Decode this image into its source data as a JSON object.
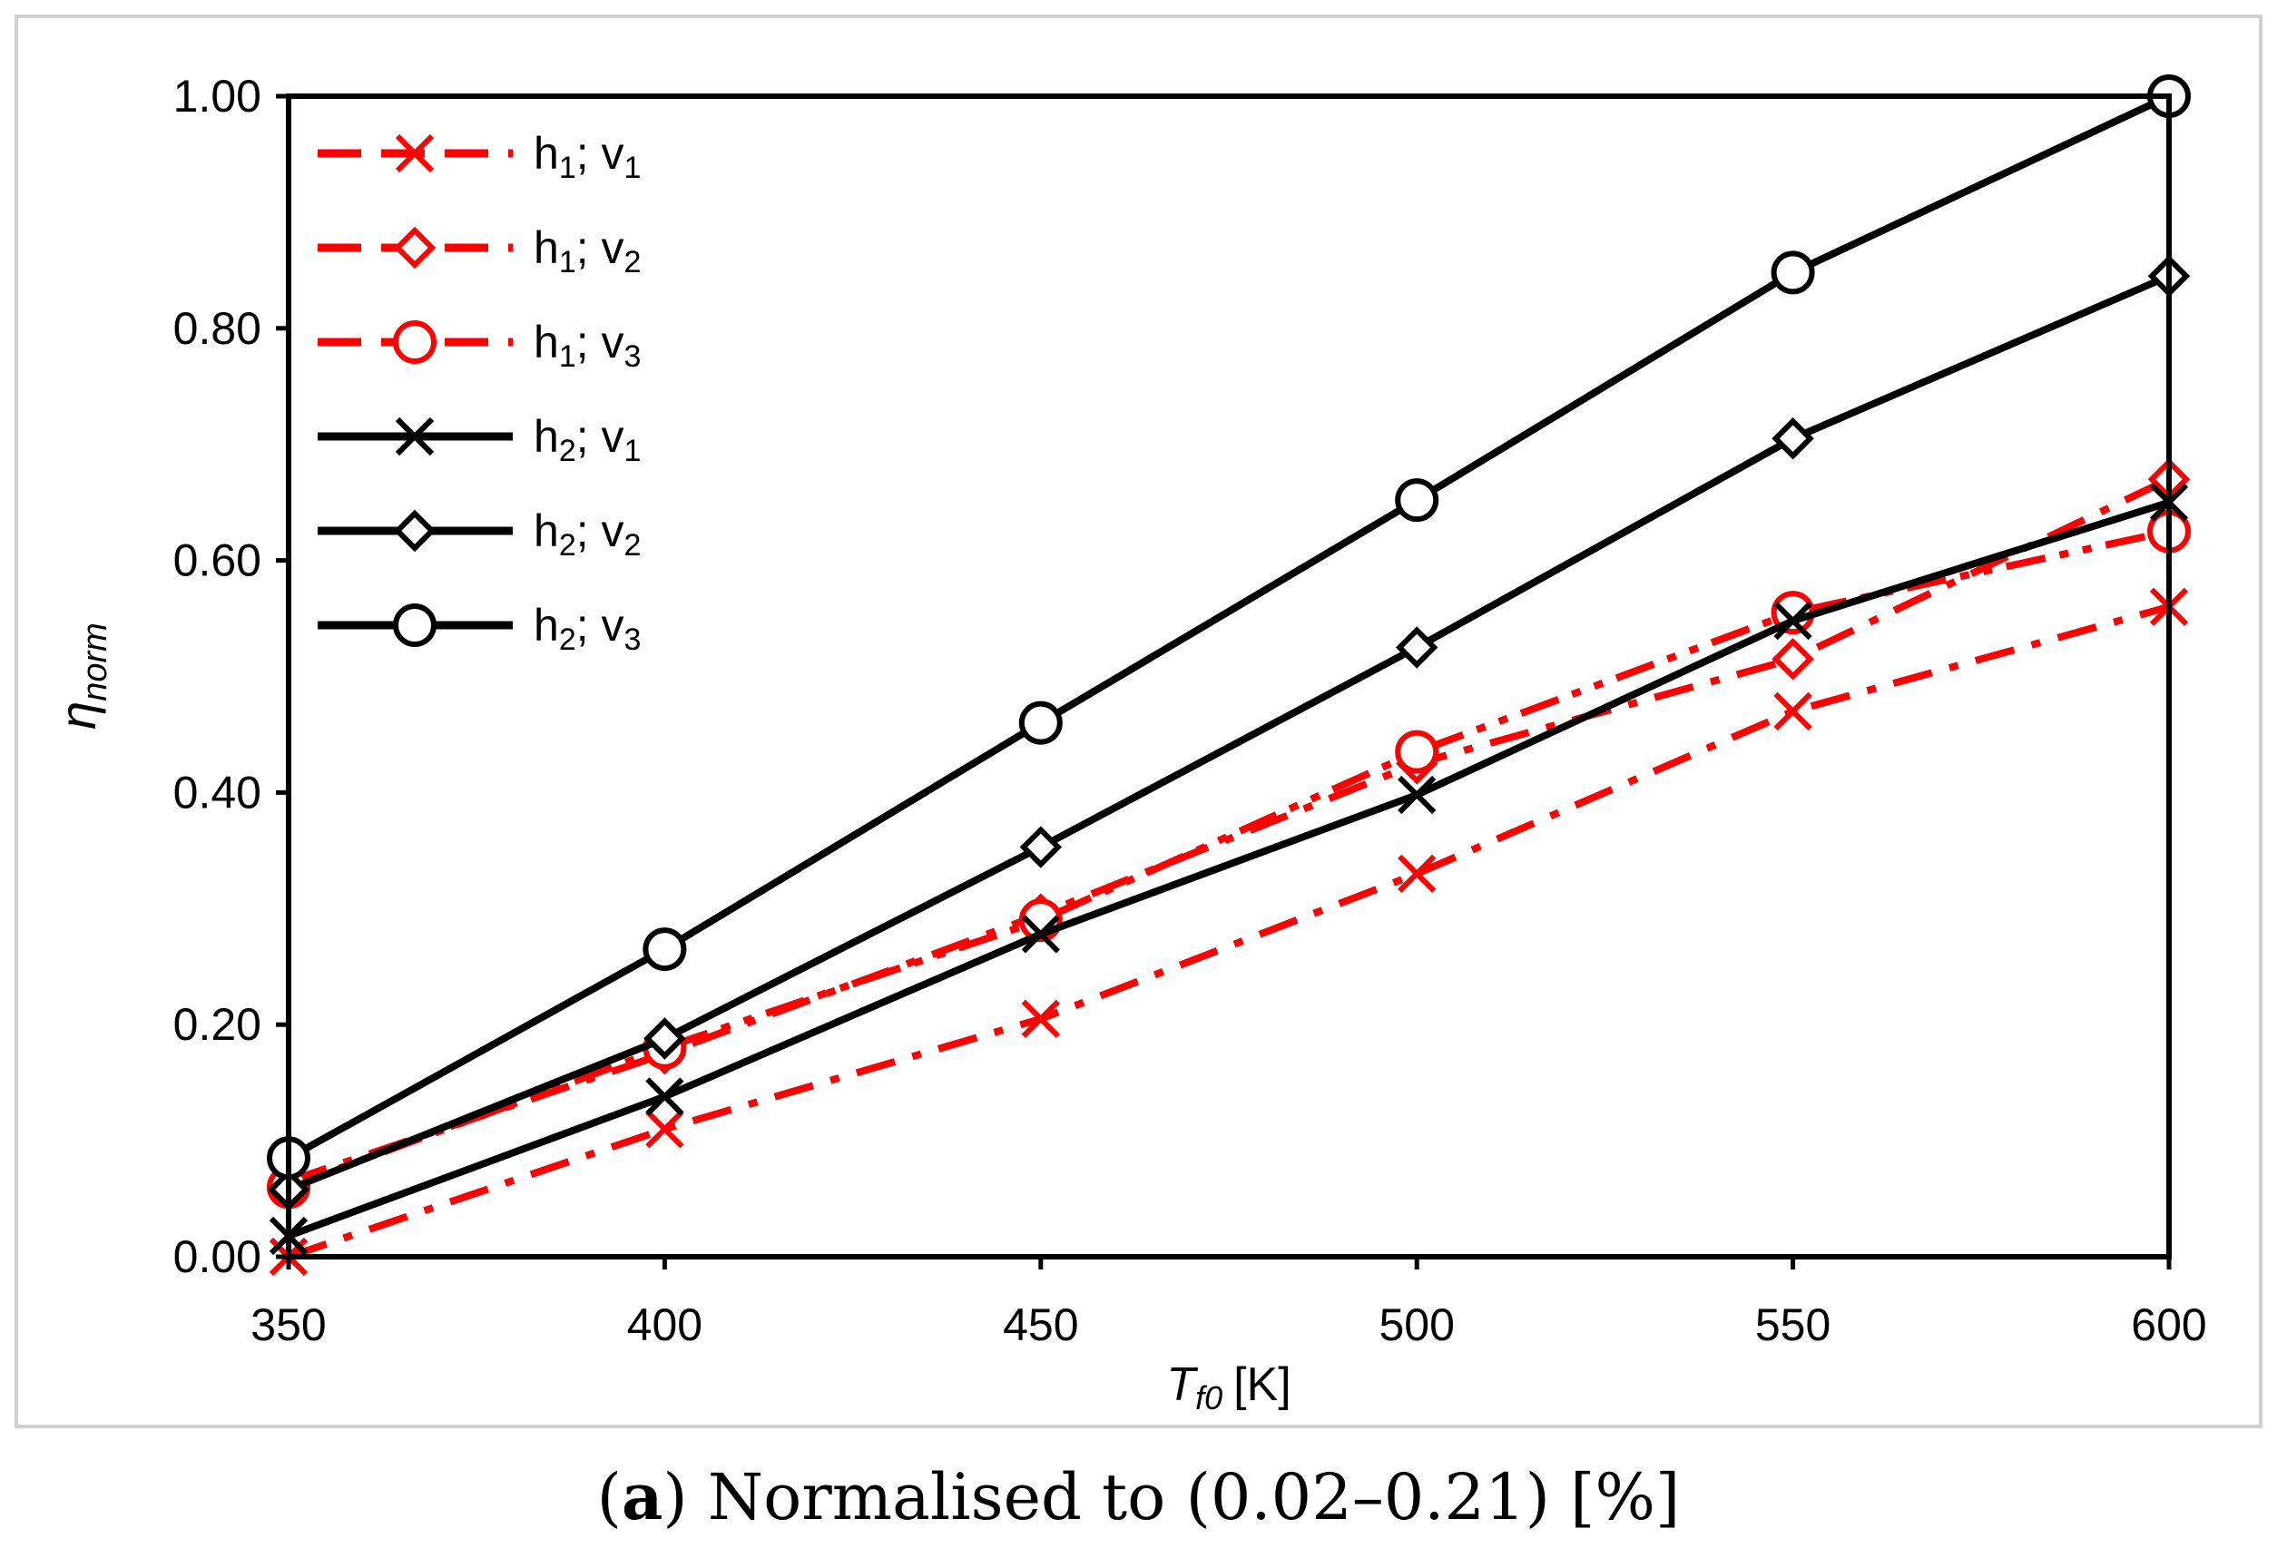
{
  "chart_data": {
    "type": "line",
    "title": "",
    "xlabel": {
      "symbol": "T",
      "subscript": "f0",
      "unit": "[K]"
    },
    "ylabel": {
      "symbol": "η",
      "subscript": "norm"
    },
    "x": [
      350,
      400,
      450,
      500,
      550,
      600
    ],
    "xlim": [
      350,
      600
    ],
    "ylim": [
      0,
      1
    ],
    "xticks": [
      "350",
      "400",
      "450",
      "500",
      "550",
      "600"
    ],
    "yticks": [
      "0.00",
      "0.20",
      "0.40",
      "0.60",
      "0.80",
      "1.00"
    ],
    "grid": false,
    "legend_position": "top-left",
    "series": [
      {
        "name": "h1; v1",
        "h": "h",
        "hsub": "1",
        "v": "v",
        "vsub": "1",
        "color": "#ff0000",
        "marker": "x",
        "linestyle": "dash-dot",
        "values": [
          0.0,
          0.11,
          0.205,
          0.33,
          0.47,
          0.56
        ]
      },
      {
        "name": "h1; v2",
        "h": "h",
        "hsub": "1",
        "v": "v",
        "vsub": "2",
        "color": "#ff0000",
        "marker": "diamond",
        "linestyle": "dash-dot",
        "values": [
          0.065,
          0.175,
          0.295,
          0.425,
          0.515,
          0.67
        ]
      },
      {
        "name": "h1; v3",
        "h": "h",
        "hsub": "1",
        "v": "v",
        "vsub": "3",
        "color": "#ff0000",
        "marker": "circle",
        "linestyle": "dash-dot-dot",
        "values": [
          0.06,
          0.18,
          0.29,
          0.435,
          0.555,
          0.625
        ]
      },
      {
        "name": "h2; v1",
        "h": "h",
        "hsub": "2",
        "v": "v",
        "vsub": "1",
        "color": "#000000",
        "marker": "x",
        "linestyle": "solid",
        "values": [
          0.018,
          0.138,
          0.278,
          0.398,
          0.548,
          0.65
        ]
      },
      {
        "name": "h2; v2",
        "h": "h",
        "hsub": "2",
        "v": "v",
        "vsub": "2",
        "color": "#000000",
        "marker": "diamond",
        "linestyle": "solid",
        "values": [
          0.058,
          0.188,
          0.353,
          0.525,
          0.705,
          0.845
        ]
      },
      {
        "name": "h2; v3",
        "h": "h",
        "hsub": "2",
        "v": "v",
        "vsub": "3",
        "color": "#000000",
        "marker": "circle",
        "linestyle": "solid",
        "values": [
          0.085,
          0.265,
          0.46,
          0.652,
          0.848,
          1.0
        ]
      }
    ]
  },
  "caption": {
    "letter": "a",
    "text": "Normalised to (0.02–0.21) [%]"
  }
}
